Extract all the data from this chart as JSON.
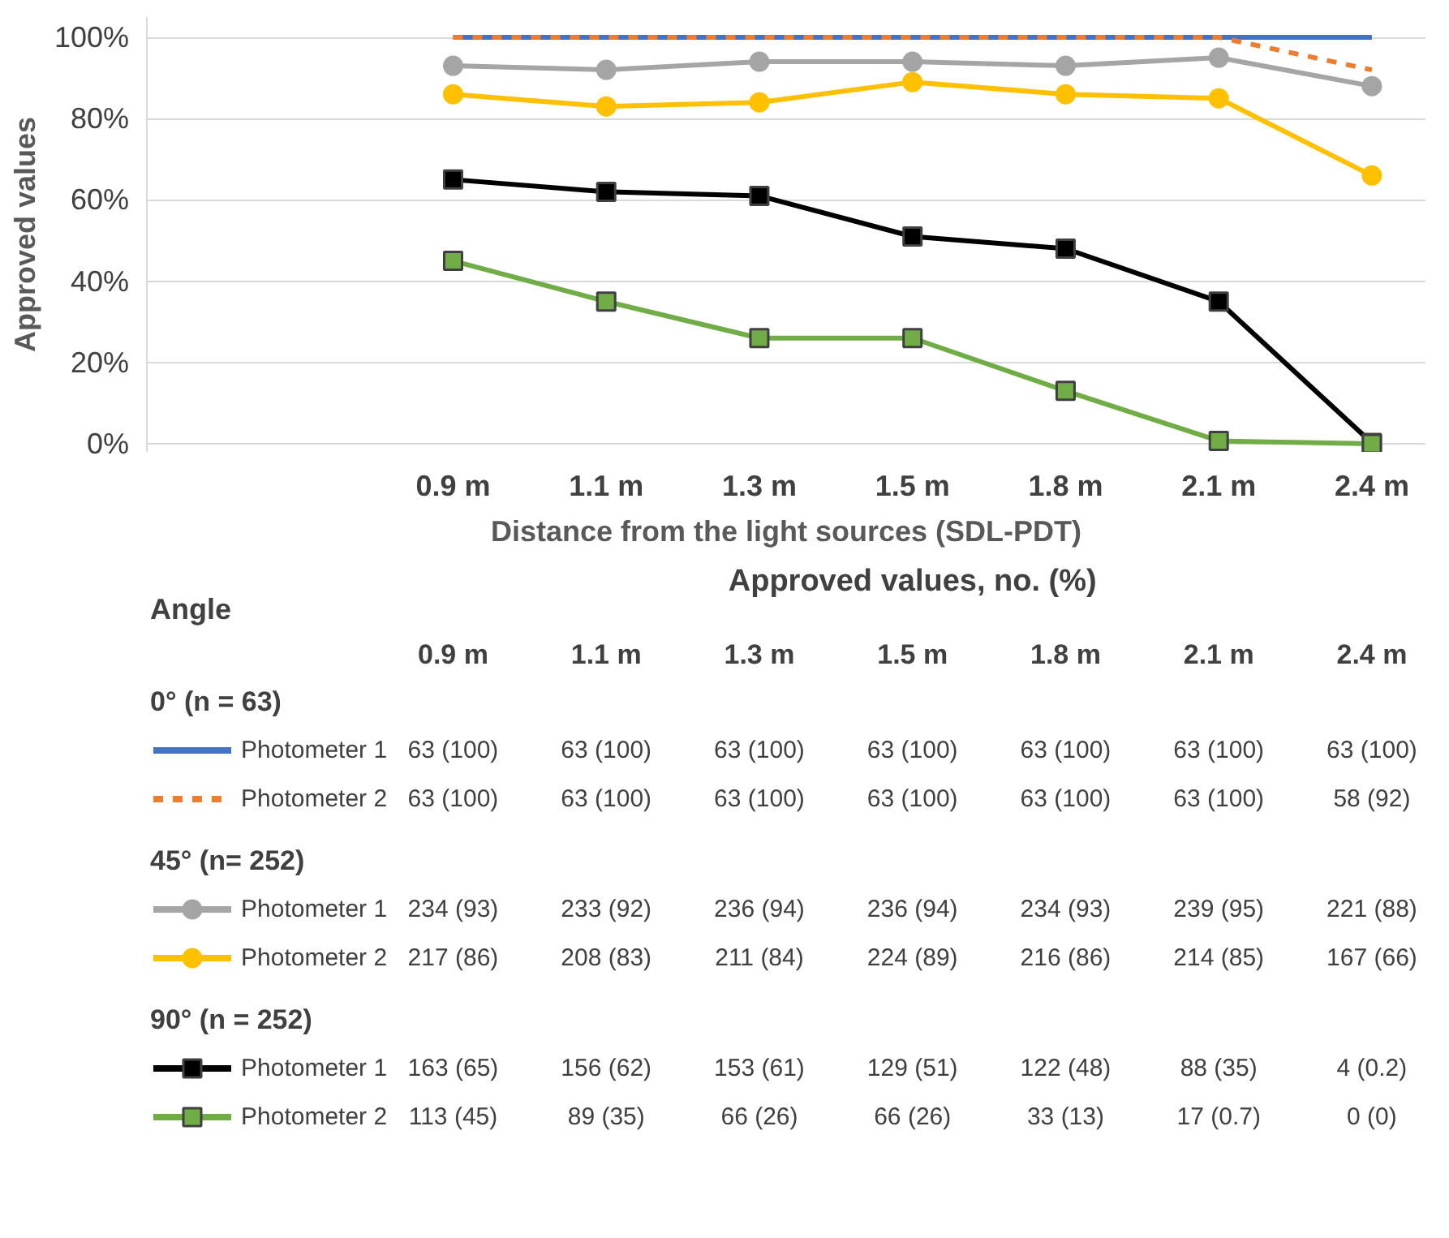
{
  "chart_data": {
    "type": "line",
    "xlabel": "Distance from the light sources (SDL-PDT)",
    "ylabel": "Approved values",
    "categories": [
      "0.9 m",
      "1.1 m",
      "1.3 m",
      "1.5 m",
      "1.8 m",
      "2.1 m",
      "2.4 m"
    ],
    "ylim": [
      -2,
      105
    ],
    "yticks": [
      {
        "value": 0,
        "label": "0%"
      },
      {
        "value": 20,
        "label": "20%"
      },
      {
        "value": 40,
        "label": "40%"
      },
      {
        "value": 60,
        "label": "60%"
      },
      {
        "value": 80,
        "label": "80%"
      },
      {
        "value": 100,
        "label": "100%"
      }
    ],
    "grid": "y",
    "legend": "bottom",
    "annotations": [
      "Approved values, no. (%)",
      "Angle",
      "0° (n = 63)",
      "45° (n= 252)",
      "90° (n = 252)"
    ],
    "series": [
      {
        "name": "Photometer 1",
        "color": "#4472c4",
        "marker": "none",
        "line_style": "solid",
        "values": [
          100,
          100,
          100,
          100,
          100,
          100,
          100
        ],
        "value_labels": [
          "63 (100)",
          "63 (100)",
          "63 (100)",
          "63 (100)",
          "63 (100)",
          "63 (100)",
          "63 (100)"
        ]
      },
      {
        "name": "Photometer 2",
        "color": "#ed7d31",
        "marker": "none",
        "line_style": "dashed",
        "values": [
          100,
          100,
          100,
          100,
          100,
          100,
          92
        ],
        "value_labels": [
          "63 (100)",
          "63 (100)",
          "63 (100)",
          "63 (100)",
          "63 (100)",
          "63 (100)",
          "58 (92)"
        ]
      },
      {
        "name": "Photometer 1",
        "color": "#a5a5a5",
        "marker": "circle",
        "line_style": "solid",
        "values": [
          93,
          92,
          94,
          94,
          93,
          95,
          88
        ],
        "value_labels": [
          "234 (93)",
          "233 (92)",
          "236 (94)",
          "236 (94)",
          "234 (93)",
          "239 (95)",
          "221 (88)"
        ]
      },
      {
        "name": "Photometer 2",
        "color": "#ffc000",
        "marker": "circle",
        "line_style": "solid",
        "values": [
          86,
          83,
          84,
          89,
          86,
          85,
          66
        ],
        "value_labels": [
          "217 (86)",
          "208 (83)",
          "211 (84)",
          "224 (89)",
          "216 (86)",
          "214 (85)",
          "167 (66)"
        ]
      },
      {
        "name": "Photometer 1",
        "color": "#000000",
        "marker": "square",
        "line_style": "solid",
        "values": [
          65,
          62,
          61,
          51,
          48,
          35,
          0.2
        ],
        "value_labels": [
          "163 (65)",
          "156 (62)",
          "153 (61)",
          "129 (51)",
          "122 (48)",
          "88 (35)",
          "4 (0.2)"
        ]
      },
      {
        "name": "Photometer 2",
        "color": "#70ad47",
        "marker": "square",
        "line_style": "solid",
        "values": [
          45,
          35,
          26,
          26,
          13,
          0.7,
          0
        ],
        "value_labels": [
          "113 (45)",
          "89 (35)",
          "66 (26)",
          "66 (26)",
          "33 (13)",
          "17 (0.7)",
          "0 (0)"
        ]
      }
    ]
  }
}
